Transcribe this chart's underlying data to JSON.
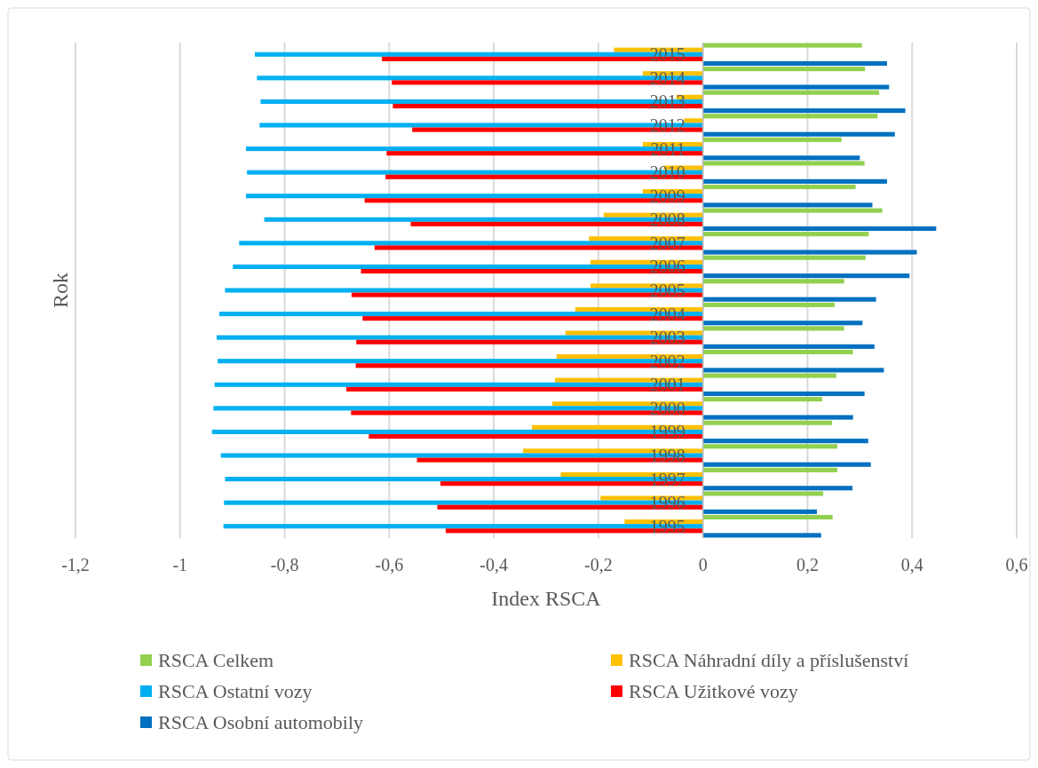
{
  "chart_data": {
    "type": "bar",
    "orientation": "horizontal",
    "xlabel": "Index RSCA",
    "ylabel": "Rok",
    "categories": [
      "2015",
      "2014",
      "2013",
      "2012",
      "2011",
      "2010",
      "2009",
      "2008",
      "2007",
      "2006",
      "2005",
      "2004",
      "2003",
      "2002",
      "2001",
      "2000",
      "1999",
      "1998",
      "1997",
      "1996",
      "1995"
    ],
    "series": [
      {
        "name": "RSCA Celkem",
        "color": "#92d050",
        "values": [
          0.304,
          0.31,
          0.337,
          0.334,
          0.265,
          0.309,
          0.292,
          0.343,
          0.317,
          0.311,
          0.27,
          0.252,
          0.27,
          0.287,
          0.255,
          0.228,
          0.247,
          0.257,
          0.257,
          0.23,
          0.248
        ]
      },
      {
        "name": "RSCA Náhradní díly a příslušenství",
        "color": "#ffc000",
        "values": [
          -0.17,
          -0.115,
          -0.051,
          -0.036,
          -0.115,
          -0.075,
          -0.115,
          -0.19,
          -0.218,
          -0.215,
          -0.215,
          -0.244,
          -0.263,
          -0.28,
          -0.283,
          -0.288,
          -0.327,
          -0.344,
          -0.272,
          -0.196,
          -0.15
        ]
      },
      {
        "name": "RSCA Ostatní vozy",
        "color": "#00b0f0",
        "values": [
          -0.857,
          -0.853,
          -0.846,
          -0.848,
          -0.874,
          -0.872,
          -0.874,
          -0.839,
          -0.887,
          -0.899,
          -0.914,
          -0.925,
          -0.93,
          -0.928,
          -0.934,
          -0.936,
          -0.939,
          -0.922,
          -0.914,
          -0.916,
          -0.917
        ]
      },
      {
        "name": "RSCA Užitkové vozy",
        "color": "#ff0000",
        "values": [
          -0.614,
          -0.595,
          -0.593,
          -0.556,
          -0.605,
          -0.607,
          -0.647,
          -0.559,
          -0.628,
          -0.654,
          -0.672,
          -0.651,
          -0.663,
          -0.664,
          -0.682,
          -0.673,
          -0.639,
          -0.547,
          -0.502,
          -0.508,
          -0.492
        ]
      },
      {
        "name": "RSCA Osobní automobily",
        "color": "#0070c0",
        "values": [
          0.352,
          0.356,
          0.387,
          0.367,
          0.3,
          0.352,
          0.324,
          0.446,
          0.409,
          0.395,
          0.331,
          0.305,
          0.328,
          0.346,
          0.309,
          0.287,
          0.316,
          0.321,
          0.286,
          0.218,
          0.226
        ]
      }
    ],
    "xlim": [
      -1.2,
      0.6
    ],
    "xticks": [
      {
        "value": -1.2,
        "label": "-1,2"
      },
      {
        "value": -1,
        "label": "-1"
      },
      {
        "value": -0.8,
        "label": "-0,8"
      },
      {
        "value": -0.6,
        "label": "-0,6"
      },
      {
        "value": -0.4,
        "label": "-0,4"
      },
      {
        "value": -0.2,
        "label": "-0,2"
      },
      {
        "value": 0,
        "label": "0"
      },
      {
        "value": 0.2,
        "label": "0,2"
      },
      {
        "value": 0.4,
        "label": "0,4"
      },
      {
        "value": 0.6,
        "label": "0,6"
      }
    ],
    "grid": "x",
    "legend": "bottom"
  }
}
